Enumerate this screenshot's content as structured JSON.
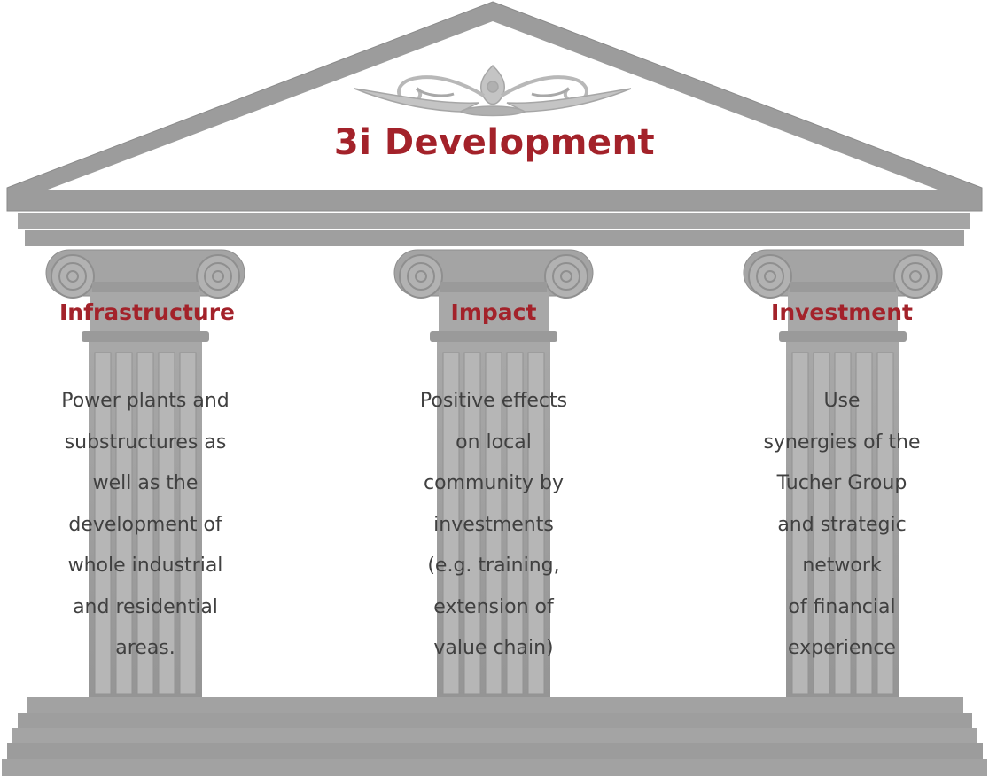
{
  "title": "3i Development",
  "pillars": [
    {
      "title": "Infrastructure",
      "text": "Power plants and\nsubstructures  as\nwell as the\ndevelopment of\nwhole industrial\nand residential\nareas."
    },
    {
      "title": "Impact",
      "text": "Positive effects\non local\ncommunity by\ninvestments\n(e.g. training,\nextension of\nvalue chain)"
    },
    {
      "title": "Investment",
      "text": "Use\nsynergies of the\nTucher Group\nand strategic\nnetwork\nof financial\nexperience"
    }
  ],
  "colors": {
    "accent": "#a3222a",
    "stone": "#9d9d9d",
    "stone_light": "#b4b4b4",
    "text": "#404040"
  }
}
